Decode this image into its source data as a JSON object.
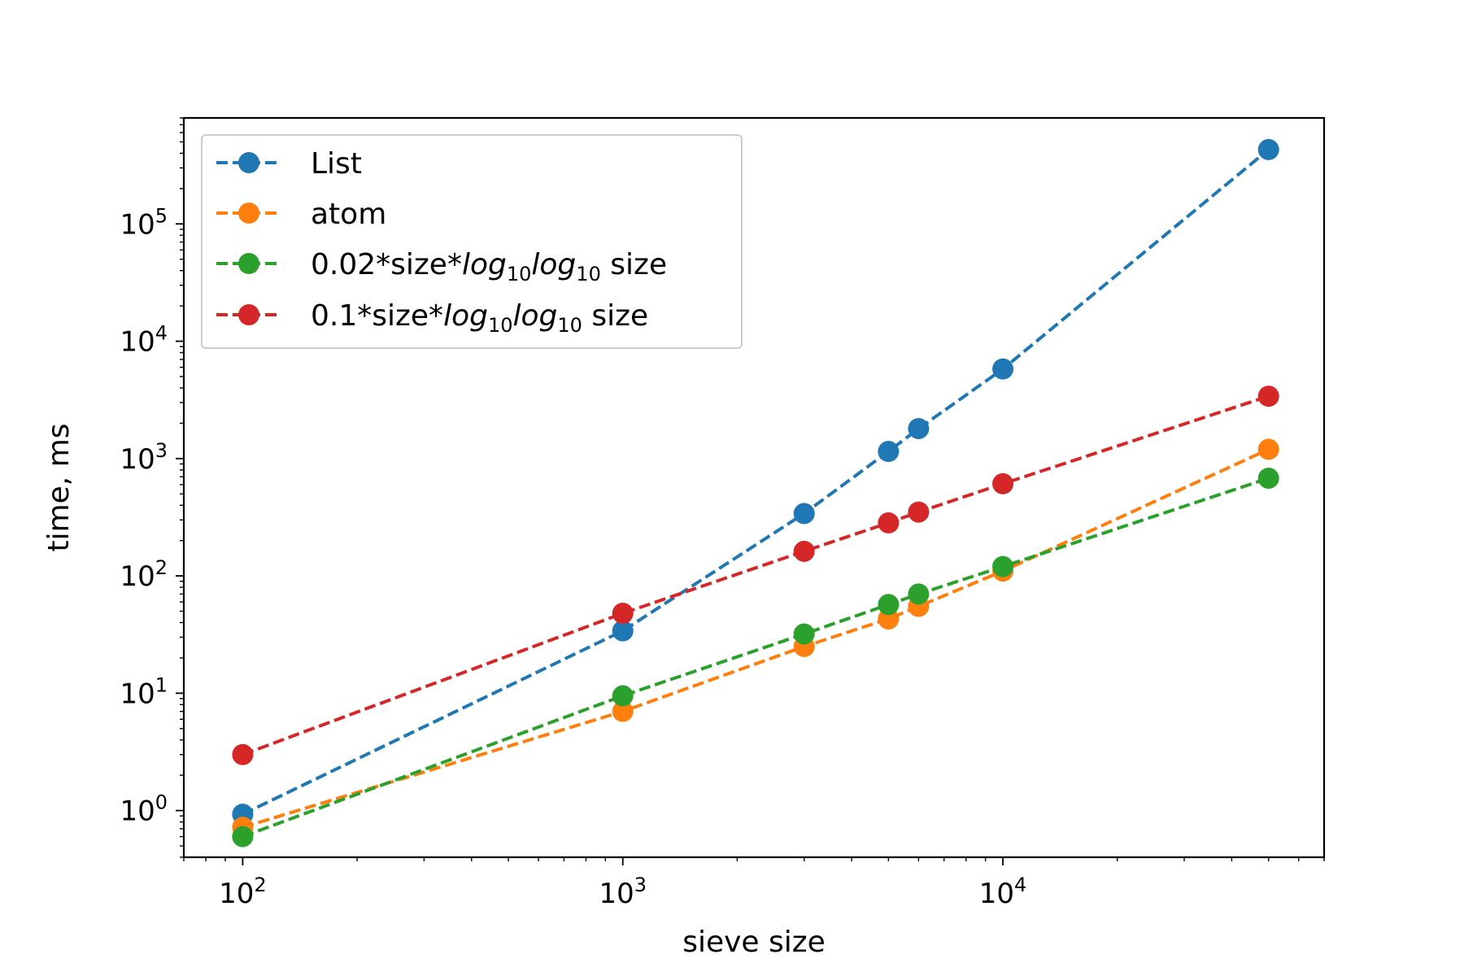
{
  "chart_data": {
    "type": "line",
    "title": "",
    "xlabel": "sieve size",
    "ylabel": "time, ms",
    "xscale": "log",
    "yscale": "log",
    "xlim": [
      70,
      70000
    ],
    "ylim": [
      0.4,
      800000
    ],
    "x": [
      100,
      1000,
      3000,
      5000,
      6000,
      10000,
      50000
    ],
    "x_ticks": [
      {
        "base": "10",
        "exp": "2",
        "value": 100
      },
      {
        "base": "10",
        "exp": "3",
        "value": 1000
      },
      {
        "base": "10",
        "exp": "4",
        "value": 10000
      }
    ],
    "y_ticks": [
      {
        "base": "10",
        "exp": "0",
        "value": 1
      },
      {
        "base": "10",
        "exp": "1",
        "value": 10
      },
      {
        "base": "10",
        "exp": "2",
        "value": 100
      },
      {
        "base": "10",
        "exp": "3",
        "value": 1000
      },
      {
        "base": "10",
        "exp": "4",
        "value": 10000
      },
      {
        "base": "10",
        "exp": "5",
        "value": 100000
      }
    ],
    "legend_position": "top-left",
    "series": [
      {
        "name": "List",
        "label_parts": [
          "List"
        ],
        "color": "#1f77b4",
        "values": [
          0.93,
          34,
          340,
          1150,
          1800,
          5800,
          430000
        ]
      },
      {
        "name": "atom",
        "label_parts": [
          "atom"
        ],
        "color": "#ff7f0e",
        "values": [
          0.72,
          7,
          25,
          43,
          55,
          110,
          1200
        ]
      },
      {
        "name": "0.02*size*log10log10 size",
        "label_parts": [
          "0.02*size*",
          "log",
          "10",
          "log",
          "10",
          " size"
        ],
        "color": "#2ca02c",
        "values": [
          0.6,
          9.5,
          32,
          57,
          70,
          120,
          680
        ]
      },
      {
        "name": "0.1*size*log10log10 size",
        "label_parts": [
          "0.1*size*",
          "log",
          "10",
          "log",
          "10",
          " size"
        ],
        "color": "#d62728",
        "values": [
          3.0,
          48,
          162,
          283,
          350,
          610,
          3400
        ]
      }
    ]
  }
}
